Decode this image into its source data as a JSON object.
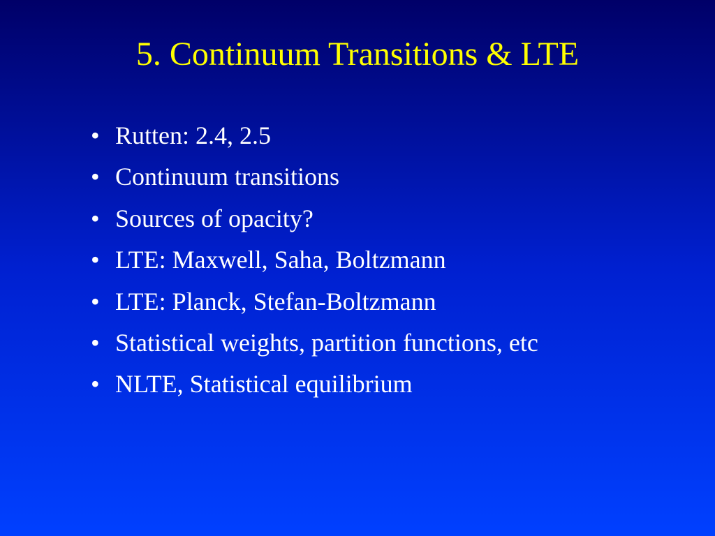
{
  "slide": {
    "title": "5. Continuum Transitions & LTE",
    "title_color": "#ffff00",
    "title_fontsize": 48,
    "text_color": "#ffffff",
    "bullet_fontsize": 36,
    "background_gradient_top": "#000068",
    "background_gradient_bottom": "#0040ff",
    "bullets": [
      "Rutten: 2.4, 2.5",
      "Continuum transitions",
      "Sources of opacity?",
      "LTE: Maxwell, Saha, Boltzmann",
      "LTE: Planck, Stefan-Boltzmann",
      "Statistical weights, partition functions, etc",
      "NLTE, Statistical equilibrium"
    ]
  }
}
